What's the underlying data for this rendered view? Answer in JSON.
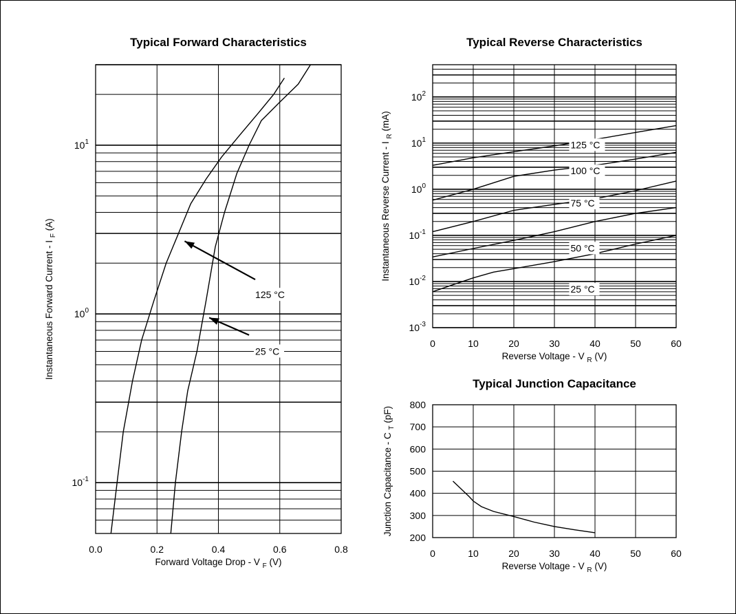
{
  "chart_data": [
    {
      "id": "forward",
      "type": "line",
      "title": "Typical Forward Characteristics",
      "xlabel": "Forward Voltage Drop - V",
      "xlabel_sub": "F",
      "xlabel_unit": "(V)",
      "ylabel": "Instantaneous Forward Current - I",
      "ylabel_sub": "F",
      "ylabel_unit": "(A)",
      "xlim": [
        0.0,
        0.8
      ],
      "ylim": [
        0.05,
        30
      ],
      "yscale": "log",
      "x_ticks": [
        "0.0",
        "0.2",
        "0.4",
        "0.6",
        "0.8"
      ],
      "y_ticks": [
        {
          "value": 0.1,
          "base": "10",
          "exp": "-1"
        },
        {
          "value": 1,
          "base": "10",
          "exp": "0"
        },
        {
          "value": 10,
          "base": "10",
          "exp": "1"
        }
      ],
      "grid": true,
      "series": [
        {
          "name": "125 °C",
          "x": [
            0.05,
            0.07,
            0.09,
            0.12,
            0.15,
            0.19,
            0.23,
            0.27,
            0.31,
            0.36,
            0.41,
            0.47,
            0.53,
            0.58,
            0.615
          ],
          "y": [
            0.05,
            0.1,
            0.2,
            0.4,
            0.7,
            1.2,
            2.0,
            3.0,
            4.5,
            6.3,
            8.5,
            11.5,
            15.5,
            20.0,
            25.0
          ]
        },
        {
          "name": "25 °C",
          "x": [
            0.245,
            0.26,
            0.28,
            0.3,
            0.33,
            0.36,
            0.39,
            0.42,
            0.46,
            0.5,
            0.54,
            0.6,
            0.66,
            0.7
          ],
          "y": [
            0.05,
            0.1,
            0.2,
            0.35,
            0.6,
            1.2,
            2.5,
            4.0,
            6.8,
            10.0,
            14.0,
            18.0,
            23.0,
            30.0
          ]
        }
      ],
      "annotations": [
        {
          "text": "125 °C",
          "x": 0.52,
          "y": 1.3,
          "arrow_from": [
            0.52,
            1.6
          ],
          "arrow_to": [
            0.29,
            2.7
          ]
        },
        {
          "text": "25 °C",
          "x": 0.52,
          "y": 0.6,
          "arrow_from": [
            0.5,
            0.75
          ],
          "arrow_to": [
            0.37,
            0.95
          ]
        }
      ]
    },
    {
      "id": "reverse",
      "type": "line",
      "title": "Typical Reverse Characteristics",
      "xlabel": "Reverse Voltage - V",
      "xlabel_sub": "R",
      "xlabel_unit": "(V)",
      "ylabel": "Instantaneous Reverse Current - I",
      "ylabel_sub": "R",
      "ylabel_unit": "(mA)",
      "xlim": [
        0,
        60
      ],
      "ylim": [
        0.001,
        500
      ],
      "yscale": "log",
      "x_ticks": [
        "0",
        "10",
        "20",
        "30",
        "40",
        "50",
        "60"
      ],
      "y_ticks": [
        {
          "value": 0.001,
          "base": "10",
          "exp": "-3"
        },
        {
          "value": 0.01,
          "base": "10",
          "exp": "-2"
        },
        {
          "value": 0.1,
          "base": "10",
          "exp": "-1"
        },
        {
          "value": 1,
          "base": "10",
          "exp": "0"
        },
        {
          "value": 10,
          "base": "10",
          "exp": "1"
        },
        {
          "value": 100,
          "base": "10",
          "exp": "2"
        }
      ],
      "grid": true,
      "series": [
        {
          "name": "125 °C",
          "x": [
            0,
            10,
            20,
            30,
            40,
            50,
            60
          ],
          "y": [
            3.3,
            4.8,
            6.5,
            8.7,
            12.0,
            17.0,
            24.0
          ]
        },
        {
          "name": "100 °C",
          "x": [
            0,
            10,
            20,
            30,
            40,
            50,
            60
          ],
          "y": [
            0.58,
            1.0,
            1.9,
            2.6,
            3.3,
            4.5,
            6.3
          ]
        },
        {
          "name": "75 °C",
          "x": [
            0,
            10,
            20,
            30,
            40,
            50,
            60
          ],
          "y": [
            0.12,
            0.2,
            0.35,
            0.47,
            0.62,
            0.93,
            1.5
          ]
        },
        {
          "name": "50 °C",
          "x": [
            0,
            10,
            20,
            30,
            40,
            50,
            60
          ],
          "y": [
            0.034,
            0.052,
            0.078,
            0.12,
            0.2,
            0.3,
            0.4
          ]
        },
        {
          "name": "25 °C",
          "x": [
            0,
            5,
            10,
            15,
            20,
            30,
            40,
            50,
            60
          ],
          "y": [
            0.006,
            0.0085,
            0.012,
            0.016,
            0.019,
            0.027,
            0.04,
            0.065,
            0.1
          ]
        }
      ],
      "labels": [
        {
          "text": "125 °C",
          "x": 35,
          "y": 9.2
        },
        {
          "text": "100 °C",
          "x": 35,
          "y": 2.5
        },
        {
          "text": "75 °C",
          "x": 35,
          "y": 0.5
        },
        {
          "text": "50 °C",
          "x": 35,
          "y": 0.053
        },
        {
          "text": "25 °C",
          "x": 35,
          "y": 0.0068
        }
      ]
    },
    {
      "id": "capacitance",
      "type": "line",
      "title": "Typical Junction Capacitance",
      "xlabel": "Reverse Voltage - V",
      "xlabel_sub": "R",
      "xlabel_unit": "(V)",
      "ylabel": "Junction Capacitance - C",
      "ylabel_sub": "T",
      "ylabel_unit": "(pF)",
      "xlim": [
        0,
        60
      ],
      "ylim": [
        200,
        800
      ],
      "yscale": "linear",
      "x_ticks": [
        "0",
        "10",
        "20",
        "30",
        "40",
        "50",
        "60"
      ],
      "y_ticks": [
        {
          "value": 200,
          "text": "200"
        },
        {
          "value": 300,
          "text": "300"
        },
        {
          "value": 400,
          "text": "400"
        },
        {
          "value": 500,
          "text": "500"
        },
        {
          "value": 600,
          "text": "600"
        },
        {
          "value": 700,
          "text": "700"
        },
        {
          "value": 800,
          "text": "800"
        }
      ],
      "grid": true,
      "series": [
        {
          "name": "",
          "x": [
            5,
            7,
            9,
            10,
            12,
            15,
            20,
            25,
            30,
            35,
            40
          ],
          "y": [
            455,
            420,
            385,
            365,
            340,
            318,
            295,
            270,
            250,
            235,
            222
          ]
        }
      ]
    }
  ]
}
